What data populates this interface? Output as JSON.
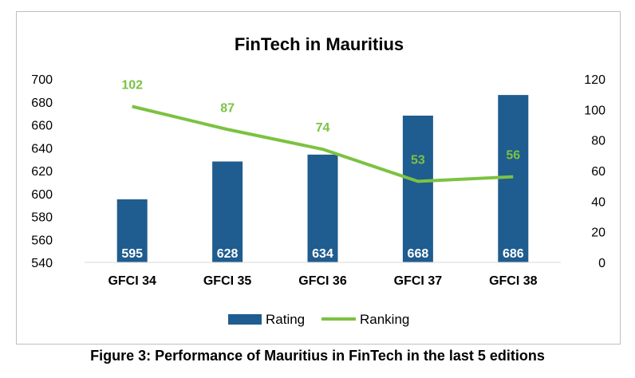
{
  "chart_data": {
    "type": "bar",
    "title": "FinTech in Mauritius",
    "categories": [
      "GFCI 34",
      "GFCI 35",
      "GFCI 36",
      "GFCI 37",
      "GFCI 38"
    ],
    "series": [
      {
        "name": "Rating",
        "type": "bar",
        "axis": "left",
        "color": "#1f5c8f",
        "values": [
          595,
          628,
          634,
          668,
          686
        ]
      },
      {
        "name": "Ranking",
        "type": "line",
        "axis": "right",
        "color": "#7cc242",
        "values": [
          102,
          87,
          74,
          53,
          56
        ]
      }
    ],
    "y_left": {
      "min": 540,
      "max": 700,
      "step": 20,
      "ticks": [
        "540",
        "560",
        "580",
        "600",
        "620",
        "640",
        "660",
        "680",
        "700"
      ]
    },
    "y_right": {
      "min": 0,
      "max": 120,
      "step": 20,
      "ticks": [
        "0",
        "20",
        "40",
        "60",
        "80",
        "100",
        "120"
      ]
    },
    "grid": false,
    "legend_position": "bottom"
  },
  "caption": "Figure 3: Performance of Mauritius in FinTech in the last 5 editions"
}
